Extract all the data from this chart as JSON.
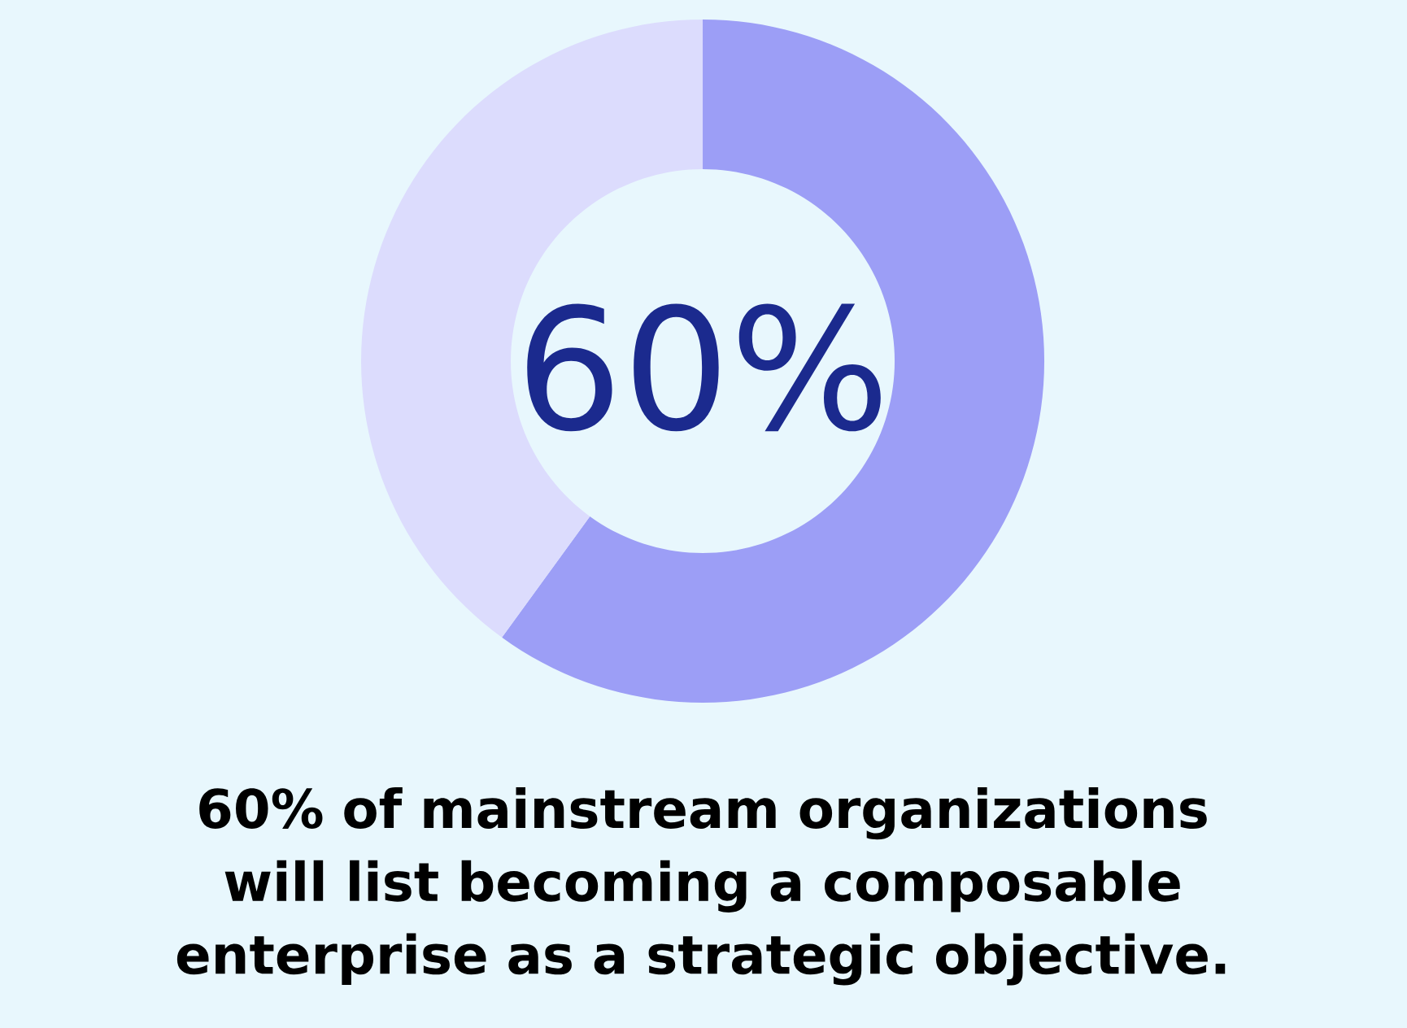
{
  "chart_data": {
    "type": "donut",
    "title": "60% of mainstream organizations will list becoming a composable enterprise as a strategic objective.",
    "categories": [
      null,
      null
    ],
    "values": [
      60,
      40
    ],
    "colors": [
      "#9c9ef6",
      "#dcdcfd"
    ],
    "annotations": [
      "60%"
    ]
  }
}
